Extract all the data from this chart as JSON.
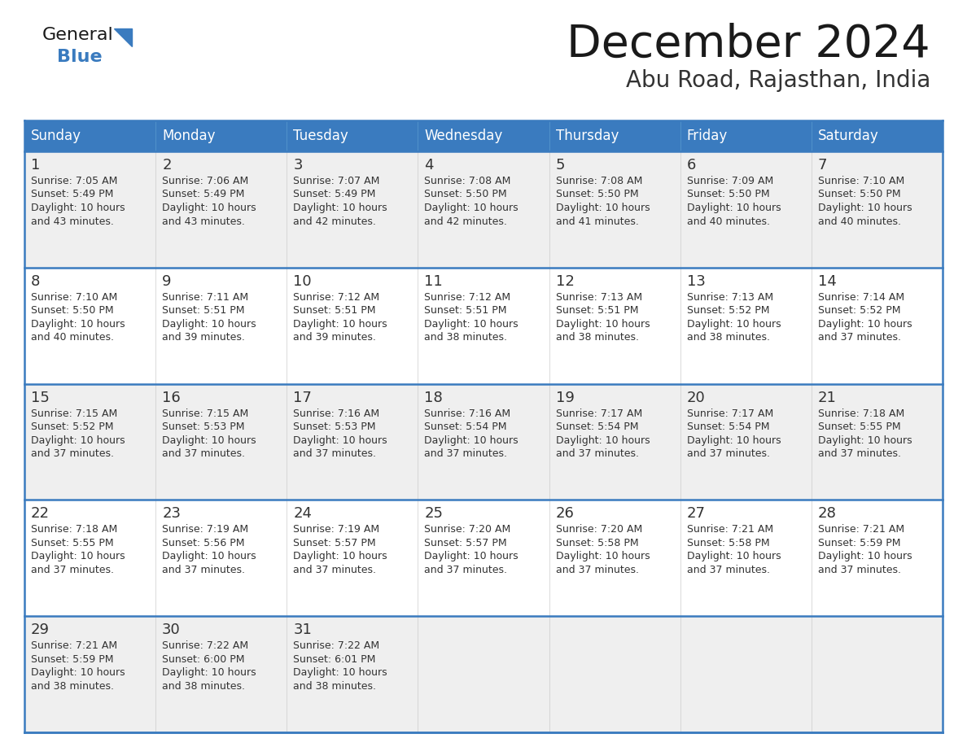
{
  "title": "December 2024",
  "subtitle": "Abu Road, Rajasthan, India",
  "days_of_week": [
    "Sunday",
    "Monday",
    "Tuesday",
    "Wednesday",
    "Thursday",
    "Friday",
    "Saturday"
  ],
  "header_bg": "#3a7bbf",
  "header_text": "#ffffff",
  "cell_bg_light": "#efefef",
  "cell_bg_white": "#ffffff",
  "border_color": "#3a7bbf",
  "text_color": "#333333",
  "title_color": "#1a1a1a",
  "subtitle_color": "#333333",
  "logo_general_color": "#1a1a1a",
  "logo_blue_color": "#3a7bbf",
  "logo_triangle_color": "#3a7bbf",
  "calendar_data": [
    [
      {
        "day": 1,
        "sunrise": "7:05 AM",
        "sunset": "5:49 PM",
        "daylight_hours": 10,
        "daylight_minutes": 43
      },
      {
        "day": 2,
        "sunrise": "7:06 AM",
        "sunset": "5:49 PM",
        "daylight_hours": 10,
        "daylight_minutes": 43
      },
      {
        "day": 3,
        "sunrise": "7:07 AM",
        "sunset": "5:49 PM",
        "daylight_hours": 10,
        "daylight_minutes": 42
      },
      {
        "day": 4,
        "sunrise": "7:08 AM",
        "sunset": "5:50 PM",
        "daylight_hours": 10,
        "daylight_minutes": 42
      },
      {
        "day": 5,
        "sunrise": "7:08 AM",
        "sunset": "5:50 PM",
        "daylight_hours": 10,
        "daylight_minutes": 41
      },
      {
        "day": 6,
        "sunrise": "7:09 AM",
        "sunset": "5:50 PM",
        "daylight_hours": 10,
        "daylight_minutes": 40
      },
      {
        "day": 7,
        "sunrise": "7:10 AM",
        "sunset": "5:50 PM",
        "daylight_hours": 10,
        "daylight_minutes": 40
      }
    ],
    [
      {
        "day": 8,
        "sunrise": "7:10 AM",
        "sunset": "5:50 PM",
        "daylight_hours": 10,
        "daylight_minutes": 40
      },
      {
        "day": 9,
        "sunrise": "7:11 AM",
        "sunset": "5:51 PM",
        "daylight_hours": 10,
        "daylight_minutes": 39
      },
      {
        "day": 10,
        "sunrise": "7:12 AM",
        "sunset": "5:51 PM",
        "daylight_hours": 10,
        "daylight_minutes": 39
      },
      {
        "day": 11,
        "sunrise": "7:12 AM",
        "sunset": "5:51 PM",
        "daylight_hours": 10,
        "daylight_minutes": 38
      },
      {
        "day": 12,
        "sunrise": "7:13 AM",
        "sunset": "5:51 PM",
        "daylight_hours": 10,
        "daylight_minutes": 38
      },
      {
        "day": 13,
        "sunrise": "7:13 AM",
        "sunset": "5:52 PM",
        "daylight_hours": 10,
        "daylight_minutes": 38
      },
      {
        "day": 14,
        "sunrise": "7:14 AM",
        "sunset": "5:52 PM",
        "daylight_hours": 10,
        "daylight_minutes": 37
      }
    ],
    [
      {
        "day": 15,
        "sunrise": "7:15 AM",
        "sunset": "5:52 PM",
        "daylight_hours": 10,
        "daylight_minutes": 37
      },
      {
        "day": 16,
        "sunrise": "7:15 AM",
        "sunset": "5:53 PM",
        "daylight_hours": 10,
        "daylight_minutes": 37
      },
      {
        "day": 17,
        "sunrise": "7:16 AM",
        "sunset": "5:53 PM",
        "daylight_hours": 10,
        "daylight_minutes": 37
      },
      {
        "day": 18,
        "sunrise": "7:16 AM",
        "sunset": "5:54 PM",
        "daylight_hours": 10,
        "daylight_minutes": 37
      },
      {
        "day": 19,
        "sunrise": "7:17 AM",
        "sunset": "5:54 PM",
        "daylight_hours": 10,
        "daylight_minutes": 37
      },
      {
        "day": 20,
        "sunrise": "7:17 AM",
        "sunset": "5:54 PM",
        "daylight_hours": 10,
        "daylight_minutes": 37
      },
      {
        "day": 21,
        "sunrise": "7:18 AM",
        "sunset": "5:55 PM",
        "daylight_hours": 10,
        "daylight_minutes": 37
      }
    ],
    [
      {
        "day": 22,
        "sunrise": "7:18 AM",
        "sunset": "5:55 PM",
        "daylight_hours": 10,
        "daylight_minutes": 37
      },
      {
        "day": 23,
        "sunrise": "7:19 AM",
        "sunset": "5:56 PM",
        "daylight_hours": 10,
        "daylight_minutes": 37
      },
      {
        "day": 24,
        "sunrise": "7:19 AM",
        "sunset": "5:57 PM",
        "daylight_hours": 10,
        "daylight_minutes": 37
      },
      {
        "day": 25,
        "sunrise": "7:20 AM",
        "sunset": "5:57 PM",
        "daylight_hours": 10,
        "daylight_minutes": 37
      },
      {
        "day": 26,
        "sunrise": "7:20 AM",
        "sunset": "5:58 PM",
        "daylight_hours": 10,
        "daylight_minutes": 37
      },
      {
        "day": 27,
        "sunrise": "7:21 AM",
        "sunset": "5:58 PM",
        "daylight_hours": 10,
        "daylight_minutes": 37
      },
      {
        "day": 28,
        "sunrise": "7:21 AM",
        "sunset": "5:59 PM",
        "daylight_hours": 10,
        "daylight_minutes": 37
      }
    ],
    [
      {
        "day": 29,
        "sunrise": "7:21 AM",
        "sunset": "5:59 PM",
        "daylight_hours": 10,
        "daylight_minutes": 38
      },
      {
        "day": 30,
        "sunrise": "7:22 AM",
        "sunset": "6:00 PM",
        "daylight_hours": 10,
        "daylight_minutes": 38
      },
      {
        "day": 31,
        "sunrise": "7:22 AM",
        "sunset": "6:01 PM",
        "daylight_hours": 10,
        "daylight_minutes": 38
      },
      null,
      null,
      null,
      null
    ]
  ]
}
